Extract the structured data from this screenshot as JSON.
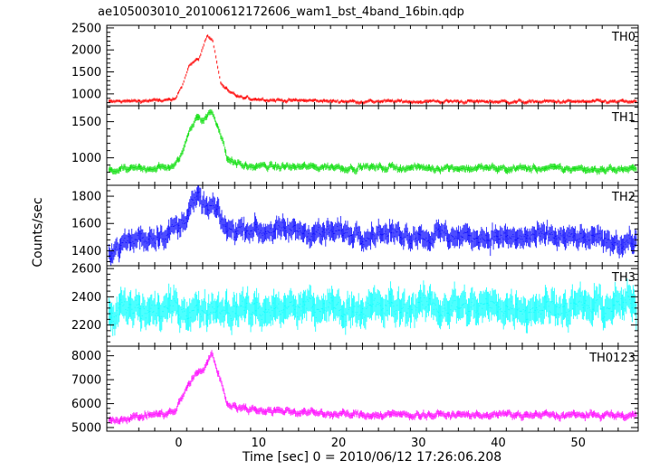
{
  "chart_data": {
    "type": "line",
    "title": "ae105003010_20100612172606_wam1_bst_4band_16bin.qdp",
    "xlabel": "Time [sec] 0 = 2010/06/12 17:26:06.208",
    "ylabel": "Counts/sec",
    "xlim": [
      -9,
      57.5
    ],
    "x_ticks": [
      0,
      10,
      20,
      30,
      40,
      50
    ],
    "panels": [
      {
        "name": "TH0",
        "color": "#ff0000",
        "ylim": [
          730,
          2560
        ],
        "y_ticks": [
          1000,
          1500,
          2000,
          2500
        ],
        "baseline": 820,
        "noise": 30,
        "profile": [
          [
            -9,
            820
          ],
          [
            -0.5,
            860
          ],
          [
            0.5,
            1250
          ],
          [
            1.2,
            1650
          ],
          [
            2.5,
            1800
          ],
          [
            3.5,
            2350
          ],
          [
            4.2,
            2200
          ],
          [
            5.2,
            1250
          ],
          [
            6.5,
            1000
          ],
          [
            8,
            900
          ],
          [
            12,
            860
          ],
          [
            20,
            830
          ],
          [
            57.5,
            820
          ]
        ]
      },
      {
        "name": "TH1",
        "color": "#00dd00",
        "ylim": [
          620,
          1720
        ],
        "y_ticks": [
          1000,
          1500
        ],
        "baseline": 840,
        "noise": 35,
        "profile": [
          [
            -9,
            820
          ],
          [
            -0.5,
            880
          ],
          [
            0.3,
            1050
          ],
          [
            1.2,
            1350
          ],
          [
            2.2,
            1600
          ],
          [
            3,
            1500
          ],
          [
            4,
            1650
          ],
          [
            5,
            1400
          ],
          [
            6,
            1000
          ],
          [
            8,
            880
          ],
          [
            57.5,
            840
          ]
        ]
      },
      {
        "name": "TH2",
        "color": "#0000ff",
        "ylim": [
          1290,
          1880
        ],
        "y_ticks": [
          1400,
          1600,
          1800
        ],
        "baseline": 1470,
        "noise": 55,
        "profile": [
          [
            -9,
            1390
          ],
          [
            -5,
            1490
          ],
          [
            0,
            1560
          ],
          [
            1.5,
            1760
          ],
          [
            2.5,
            1780
          ],
          [
            3.5,
            1700
          ],
          [
            4.2,
            1720
          ],
          [
            6,
            1560
          ],
          [
            57.5,
            1470
          ]
        ]
      },
      {
        "name": "TH3",
        "color": "#00ffff",
        "ylim": [
          2050,
          2620
        ],
        "y_ticks": [
          2200,
          2400,
          2600
        ],
        "baseline": 2340,
        "noise": 80,
        "profile": [
          [
            -9,
            2300
          ],
          [
            57.5,
            2340
          ]
        ]
      },
      {
        "name": "TH0123",
        "color": "#ff00ff",
        "ylim": [
          4850,
          8400
        ],
        "y_ticks": [
          5000,
          6000,
          7000,
          8000
        ],
        "baseline": 5500,
        "noise": 110,
        "profile": [
          [
            -9,
            5300
          ],
          [
            -0.5,
            5650
          ],
          [
            1,
            6700
          ],
          [
            2,
            7200
          ],
          [
            3,
            7400
          ],
          [
            4,
            8100
          ],
          [
            5,
            7200
          ],
          [
            6,
            6000
          ],
          [
            8,
            5800
          ],
          [
            20,
            5550
          ],
          [
            57.5,
            5500
          ]
        ]
      }
    ],
    "grid": false,
    "legend": "none"
  }
}
